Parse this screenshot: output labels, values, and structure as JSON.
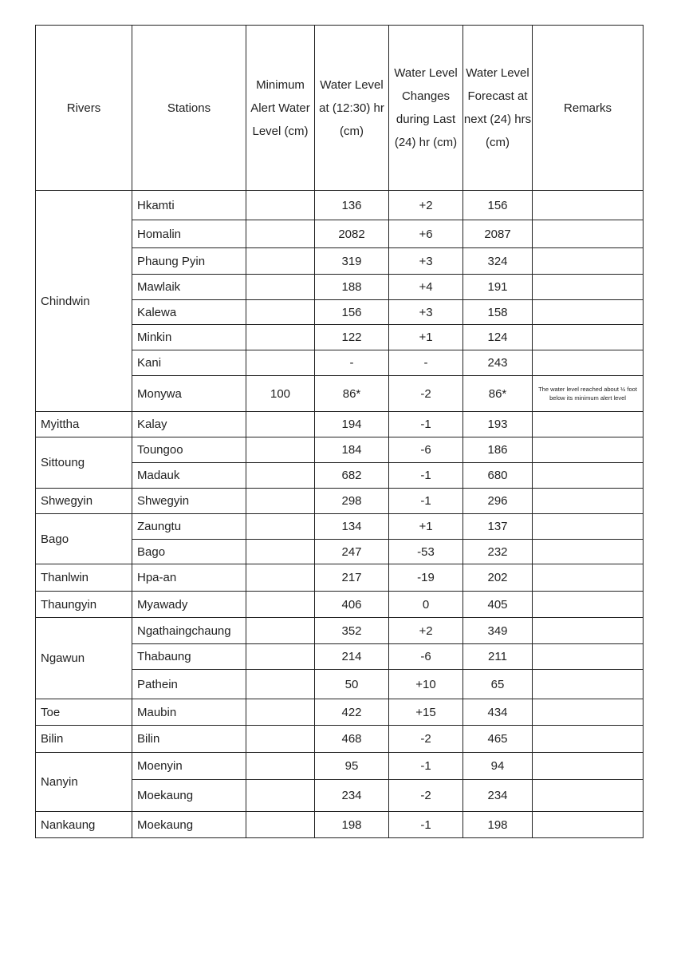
{
  "headers": [
    "Rivers",
    "Stations",
    "Minimum Alert Water Level (cm)",
    "Water Level at (12:30) hr (cm)",
    "Water Level Changes during Last (24) hr (cm)",
    "Water Level Forecast at next (24) hrs (cm)",
    "Remarks"
  ],
  "groups": [
    {
      "river": "Chindwin",
      "rows": [
        {
          "station": "Hkamti",
          "alert": "",
          "level": "136",
          "change": "+2",
          "forecast": "156",
          "remarks": ""
        },
        {
          "station": "Homalin",
          "alert": "",
          "level": "2082",
          "change": "+6",
          "forecast": "2087",
          "remarks": ""
        },
        {
          "station": "Phaung Pyin",
          "alert": "",
          "level": "319",
          "change": "+3",
          "forecast": "324",
          "remarks": ""
        },
        {
          "station": "Mawlaik",
          "alert": "",
          "level": "188",
          "change": "+4",
          "forecast": "191",
          "remarks": ""
        },
        {
          "station": "Kalewa",
          "alert": "",
          "level": "156",
          "change": "+3",
          "forecast": "158",
          "remarks": ""
        },
        {
          "station": "Minkin",
          "alert": "",
          "level": "122",
          "change": "+1",
          "forecast": "124",
          "remarks": ""
        },
        {
          "station": "Kani",
          "alert": "",
          "level": "-",
          "change": "-",
          "forecast": "243",
          "remarks": ""
        },
        {
          "station": "Monywa",
          "alert": "100",
          "level": "86*",
          "change": "-2",
          "forecast": "86*",
          "remarks": "The water level reached about ½ foot below its minimum alert level"
        }
      ]
    },
    {
      "river": "Myittha",
      "rows": [
        {
          "station": "Kalay",
          "alert": "",
          "level": "194",
          "change": "-1",
          "forecast": "193",
          "remarks": ""
        }
      ]
    },
    {
      "river": "Sittoung",
      "rows": [
        {
          "station": "Toungoo",
          "alert": "",
          "level": "184",
          "change": "-6",
          "forecast": "186",
          "remarks": ""
        },
        {
          "station": "Madauk",
          "alert": "",
          "level": "682",
          "change": "-1",
          "forecast": "680",
          "remarks": ""
        }
      ]
    },
    {
      "river": "Shwegyin",
      "rows": [
        {
          "station": "Shwegyin",
          "alert": "",
          "level": "298",
          "change": "-1",
          "forecast": "296",
          "remarks": ""
        }
      ]
    },
    {
      "river": "Bago",
      "rows": [
        {
          "station": "Zaungtu",
          "alert": "",
          "level": "134",
          "change": "+1",
          "forecast": "137",
          "remarks": ""
        },
        {
          "station": "Bago",
          "alert": "",
          "level": "247",
          "change": "-53",
          "forecast": "232",
          "remarks": ""
        }
      ]
    },
    {
      "river": "Thanlwin",
      "rows": [
        {
          "station": "Hpa-an",
          "alert": "",
          "level": "217",
          "change": "-19",
          "forecast": "202",
          "remarks": ""
        }
      ]
    },
    {
      "river": "Thaungyin",
      "rows": [
        {
          "station": "Myawady",
          "alert": "",
          "level": "406",
          "change": "0",
          "forecast": "405",
          "remarks": ""
        }
      ]
    },
    {
      "river": "Ngawun",
      "rows": [
        {
          "station": "Ngathaingchaung",
          "alert": "",
          "level": "352",
          "change": "+2",
          "forecast": "349",
          "remarks": ""
        },
        {
          "station": "Thabaung",
          "alert": "",
          "level": "214",
          "change": "-6",
          "forecast": "211",
          "remarks": ""
        },
        {
          "station": "Pathein",
          "alert": "",
          "level": "50",
          "change": "+10",
          "forecast": "65",
          "remarks": ""
        }
      ]
    },
    {
      "river": "Toe",
      "rows": [
        {
          "station": "Maubin",
          "alert": "",
          "level": "422",
          "change": "+15",
          "forecast": "434",
          "remarks": ""
        }
      ]
    },
    {
      "river": "Bilin",
      "rows": [
        {
          "station": "Bilin",
          "alert": "",
          "level": "468",
          "change": "-2",
          "forecast": "465",
          "remarks": ""
        }
      ]
    },
    {
      "river": "Nanyin",
      "rows": [
        {
          "station": "Moenyin",
          "alert": "",
          "level": "95",
          "change": "-1",
          "forecast": "94",
          "remarks": ""
        },
        {
          "station": "Moekaung",
          "alert": "",
          "level": "234",
          "change": "-2",
          "forecast": "234",
          "remarks": ""
        }
      ]
    },
    {
      "river": "Nankaung",
      "rows": [
        {
          "station": "Moekaung",
          "alert": "",
          "level": "198",
          "change": "-1",
          "forecast": "198",
          "remarks": ""
        }
      ]
    }
  ]
}
